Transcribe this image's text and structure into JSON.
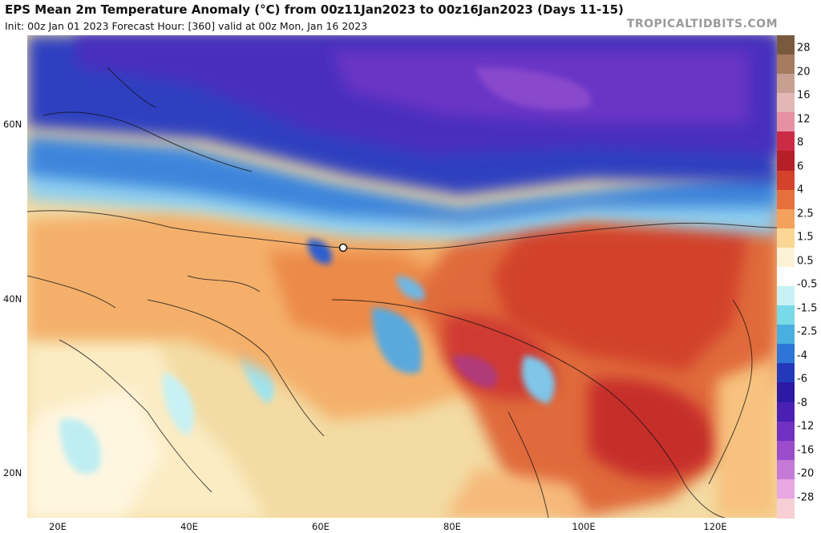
{
  "header": {
    "title": "EPS Mean 2m Temperature Anomaly (°C) from 00z11Jan2023 to 00z16Jan2023 (Days 11-15)",
    "subtitle": "Init: 00z Jan 01 2023   Forecast Hour: [360]   valid at 00z Mon, Jan 16 2023",
    "brand": "TROPICALTIDBITS.COM"
  },
  "map": {
    "lat_labels": [
      "60N",
      "40N",
      "20N"
    ],
    "lon_labels": [
      "20E",
      "40E",
      "60E",
      "80E",
      "100E",
      "120E"
    ]
  },
  "colorbar": {
    "labels": [
      "28",
      "20",
      "16",
      "12",
      "8",
      "6",
      "4",
      "2.5",
      "1.5",
      "0.5",
      "-0.5",
      "-1.5",
      "-2.5",
      "-4",
      "-6",
      "-8",
      "-12",
      "-16",
      "-20",
      "-28"
    ],
    "colors": [
      "#7a5a3f",
      "#a57a5e",
      "#c8a092",
      "#e2b7b6",
      "#e591a3",
      "#cc2b45",
      "#b51f27",
      "#d3432c",
      "#e76f3c",
      "#f3a15c",
      "#fbd694",
      "#fcf3d6",
      "#ffffff",
      "#c7f1f4",
      "#78d9e9",
      "#49aee0",
      "#2d75d6",
      "#2339ba",
      "#2c1aa4",
      "#4a20b4",
      "#7030c0",
      "#9a4dcc",
      "#c47ad6",
      "#e8a8e2",
      "#f6cfd5"
    ]
  }
}
